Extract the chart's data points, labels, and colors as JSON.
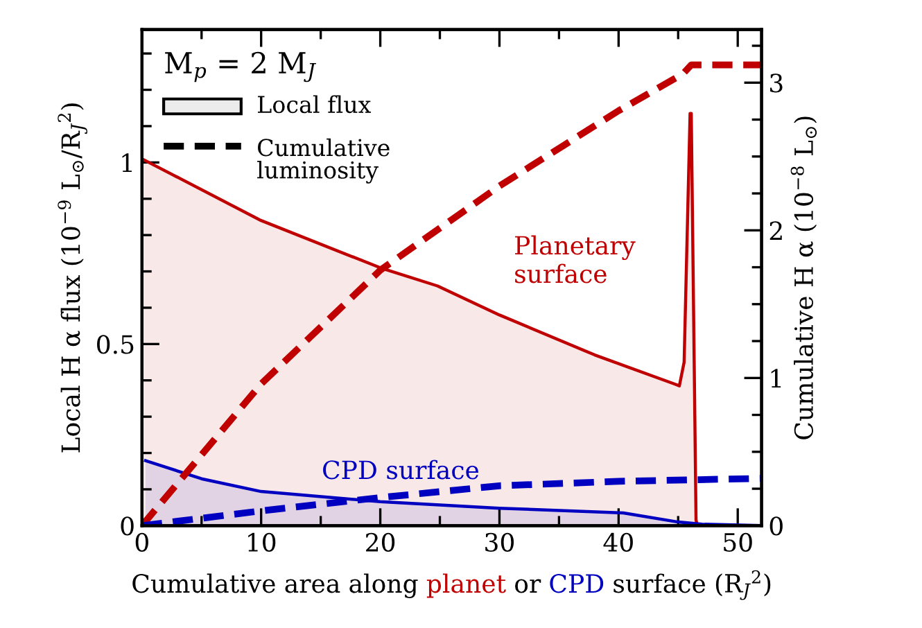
{
  "chart_data": {
    "type": "area",
    "xlabel": "Cumulative area along planet or CPD surface (R$_{J}$$^{2}$)",
    "ylabel": "Local H α flux (10$^{−9}$ L$_{⊙}$/R$_{J}$$^{2}$)",
    "y2label": "Cumulative H α (10$^{−8}$ L$_{⊙}$)",
    "legend_title": "M$_{p}$ = 2 M$_{J}$",
    "xlim": [
      0,
      52
    ],
    "ylim": [
      0,
      1.366
    ],
    "y2lim": [
      0,
      3.36
    ],
    "xticks": [
      0,
      {
        "value": 5,
        "label": null
      },
      10,
      {
        "value": 15,
        "label": null
      },
      20,
      {
        "value": 25,
        "label": null
      },
      30,
      {
        "value": 35,
        "label": null
      },
      40,
      {
        "value": 45,
        "label": null
      },
      50
    ],
    "yticks": [
      0,
      {
        "value": 0.1,
        "label": null
      },
      {
        "value": 0.2,
        "label": null
      },
      {
        "value": 0.3,
        "label": null
      },
      {
        "value": 0.4,
        "label": null
      },
      0.5,
      {
        "value": 0.6,
        "label": null
      },
      {
        "value": 0.7,
        "label": null
      },
      {
        "value": 0.8,
        "label": null
      },
      {
        "value": 0.9,
        "label": null
      },
      1,
      {
        "value": 1.1,
        "label": null
      },
      {
        "value": 1.2,
        "label": null
      },
      {
        "value": 1.3,
        "label": null
      }
    ],
    "y2ticks": [
      0,
      {
        "value": 0.25,
        "label": null
      },
      {
        "value": 0.5,
        "label": null
      },
      {
        "value": 0.75,
        "label": null
      },
      1,
      {
        "value": 1.25,
        "label": null
      },
      {
        "value": 1.5,
        "label": null
      },
      {
        "value": 1.75,
        "label": null
      },
      2,
      {
        "value": 2.25,
        "label": null
      },
      {
        "value": 2.5,
        "label": null
      },
      {
        "value": 2.75,
        "label": null
      },
      3,
      {
        "value": 3.25,
        "label": null
      }
    ],
    "grid": false,
    "annotations": [
      "Local flux",
      "Cumulative\nluminosity",
      "Planetary\nsurface",
      "CPD surface"
    ],
    "series": [
      {
        "color": "#c00000",
        "line_style": "solid",
        "x": [
          0,
          10,
          20,
          24.8,
          30,
          38,
          44.7,
          45.1,
          45.5,
          46,
          46.1,
          46.5,
          46.6
        ],
        "values": [
          1.01,
          0.84,
          0.71,
          0.66,
          0.58,
          0.47,
          0.39,
          0.385,
          0.45,
          1.135,
          1.135,
          0.016,
          0
        ]
      },
      {
        "color": "#0000c0",
        "line_style": "solid",
        "x": [
          0.3,
          5,
          10,
          20,
          30,
          40.4,
          45,
          47,
          52
        ],
        "values": [
          0.179,
          0.129,
          0.094,
          0.066,
          0.048,
          0.035,
          0.01,
          0.004,
          0
        ]
      },
      {
        "type": "line",
        "axis": "y2",
        "color": "#c00000",
        "line_style": "dashed",
        "x": [
          0,
          5,
          10,
          20,
          30,
          40,
          45.4,
          46.1,
          52
        ],
        "values": [
          0,
          0.48,
          0.96,
          1.73,
          2.3,
          2.81,
          3.06,
          3.12,
          3.12
        ]
      },
      {
        "type": "line",
        "axis": "y2",
        "color": "#0000c0",
        "line_style": "dashed",
        "x": [
          0,
          10,
          20,
          30,
          40,
          52
        ],
        "values": [
          0,
          0.1,
          0.19,
          0.27,
          0.3,
          0.32
        ]
      }
    ]
  }
}
